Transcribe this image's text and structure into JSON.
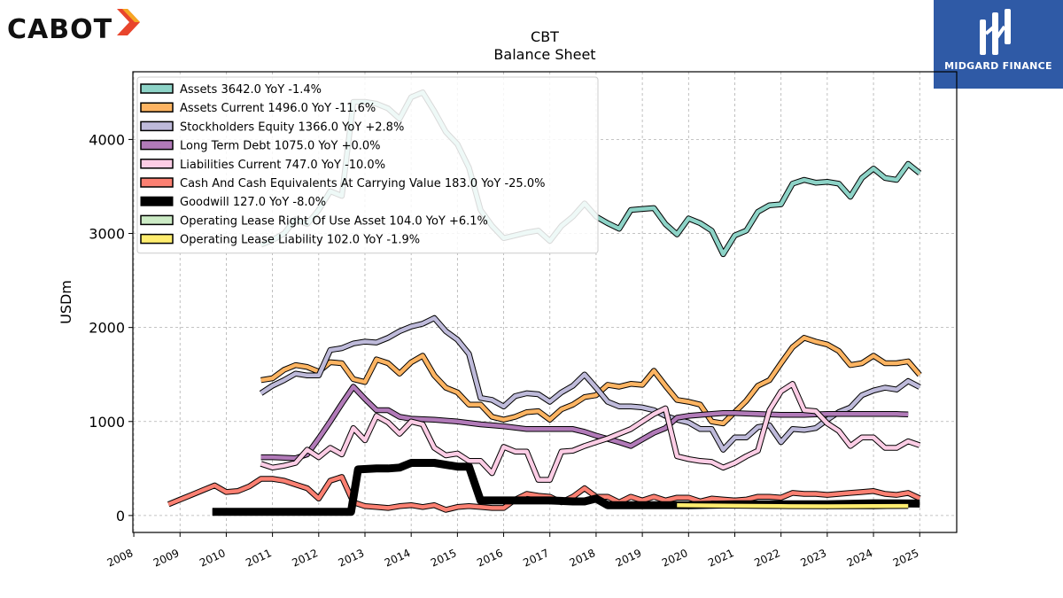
{
  "brand": {
    "left_logo": "CABOT",
    "right_logo": "MIDGARD FINANCE"
  },
  "chart_data": {
    "type": "line",
    "title": "CBT",
    "subtitle": "Balance  Sheet",
    "ylabel": "USDm",
    "xlabel": "",
    "ylim": [
      -180,
      4720
    ],
    "xlim": [
      2007.98,
      2025.8
    ],
    "yticks": [
      0,
      1000,
      2000,
      3000,
      4000
    ],
    "xticks": [
      2008,
      2009,
      2010,
      2011,
      2012,
      2013,
      2014,
      2015,
      2016,
      2017,
      2018,
      2019,
      2020,
      2021,
      2022,
      2023,
      2024,
      2025
    ],
    "grid": true,
    "legend_position": "top-left",
    "series": [
      {
        "name": "Assets  3642.0 YoY -1.4%",
        "color": "#8dd3c7",
        "x": [
          2010.75,
          2011.0,
          2011.25,
          2011.5,
          2011.75,
          2012.0,
          2012.25,
          2012.5,
          2012.75,
          2013.0,
          2013.25,
          2013.5,
          2013.75,
          2014.0,
          2014.25,
          2014.5,
          2014.75,
          2015.0,
          2015.25,
          2015.5,
          2015.75,
          2016.0,
          2016.25,
          2016.5,
          2016.75,
          2017.0,
          2017.25,
          2017.5,
          2017.75,
          2018.0,
          2018.25,
          2018.5,
          2018.75,
          2019.0,
          2019.25,
          2019.5,
          2019.75,
          2020.0,
          2020.25,
          2020.5,
          2020.75,
          2021.0,
          2021.25,
          2021.5,
          2021.75,
          2022.0,
          2022.25,
          2022.5,
          2022.75,
          2023.0,
          2023.25,
          2023.5,
          2023.75,
          2024.0,
          2024.25,
          2024.5,
          2024.75,
          2025.0
        ],
        "y": [
          2880,
          2930,
          3000,
          3150,
          3100,
          3250,
          3450,
          3400,
          4400,
          4400,
          4380,
          4330,
          4220,
          4450,
          4500,
          4300,
          4080,
          3950,
          3700,
          3250,
          3080,
          2950,
          2980,
          3010,
          3030,
          2920,
          3080,
          3180,
          3320,
          3180,
          3110,
          3050,
          3250,
          3260,
          3270,
          3100,
          2990,
          3160,
          3110,
          3030,
          2780,
          2980,
          3030,
          3230,
          3300,
          3310,
          3530,
          3570,
          3540,
          3550,
          3530,
          3390,
          3590,
          3690,
          3590,
          3570,
          3740,
          3642
        ]
      },
      {
        "name": "Assets Current  1496.0 YoY -11.6%",
        "color": "#fdb462",
        "x": [
          2010.75,
          2011.0,
          2011.25,
          2011.5,
          2011.75,
          2012.0,
          2012.25,
          2012.5,
          2012.75,
          2013.0,
          2013.25,
          2013.5,
          2013.75,
          2014.0,
          2014.25,
          2014.5,
          2014.75,
          2015.0,
          2015.25,
          2015.5,
          2015.75,
          2016.0,
          2016.25,
          2016.5,
          2016.75,
          2017.0,
          2017.25,
          2017.5,
          2017.75,
          2018.0,
          2018.25,
          2018.5,
          2018.75,
          2019.0,
          2019.25,
          2019.5,
          2019.75,
          2020.0,
          2020.25,
          2020.5,
          2020.75,
          2021.0,
          2021.25,
          2021.5,
          2021.75,
          2022.0,
          2022.25,
          2022.5,
          2022.75,
          2023.0,
          2023.25,
          2023.5,
          2023.75,
          2024.0,
          2024.25,
          2024.5,
          2024.75,
          2025.0
        ],
        "y": [
          1440,
          1460,
          1550,
          1600,
          1580,
          1530,
          1630,
          1620,
          1450,
          1420,
          1660,
          1620,
          1510,
          1630,
          1700,
          1490,
          1360,
          1310,
          1180,
          1180,
          1050,
          1020,
          1050,
          1100,
          1110,
          1020,
          1130,
          1180,
          1260,
          1280,
          1390,
          1370,
          1400,
          1390,
          1540,
          1380,
          1230,
          1210,
          1180,
          1000,
          980,
          1100,
          1220,
          1380,
          1440,
          1620,
          1790,
          1890,
          1850,
          1820,
          1750,
          1600,
          1620,
          1700,
          1620,
          1620,
          1640,
          1496
        ]
      },
      {
        "name": "Stockholders Equity  1366.0 YoY +2.8%",
        "color": "#bebada",
        "x": [
          2010.75,
          2011.0,
          2011.25,
          2011.5,
          2011.75,
          2012.0,
          2012.25,
          2012.5,
          2012.75,
          2013.0,
          2013.25,
          2013.5,
          2013.75,
          2014.0,
          2014.25,
          2014.5,
          2014.75,
          2015.0,
          2015.25,
          2015.5,
          2015.75,
          2016.0,
          2016.25,
          2016.5,
          2016.75,
          2017.0,
          2017.25,
          2017.5,
          2017.75,
          2018.0,
          2018.25,
          2018.5,
          2018.75,
          2019.0,
          2019.25,
          2019.5,
          2019.75,
          2020.0,
          2020.25,
          2020.5,
          2020.75,
          2021.0,
          2021.25,
          2021.5,
          2021.75,
          2022.0,
          2022.25,
          2022.5,
          2022.75,
          2023.0,
          2023.25,
          2023.5,
          2023.75,
          2024.0,
          2024.25,
          2024.5,
          2024.75,
          2025.0
        ],
        "y": [
          1300,
          1380,
          1440,
          1510,
          1490,
          1490,
          1760,
          1780,
          1830,
          1850,
          1840,
          1890,
          1960,
          2010,
          2040,
          2100,
          1960,
          1870,
          1720,
          1250,
          1230,
          1160,
          1270,
          1300,
          1290,
          1210,
          1310,
          1380,
          1500,
          1360,
          1210,
          1160,
          1160,
          1150,
          1120,
          1060,
          1020,
          990,
          920,
          920,
          700,
          830,
          830,
          940,
          960,
          780,
          920,
          910,
          930,
          1020,
          1100,
          1150,
          1280,
          1330,
          1360,
          1340,
          1430,
          1366
        ]
      },
      {
        "name": "Long Term Debt  1075.0 YoY +0.0%",
        "color": "#b17ab8",
        "x": [
          2010.75,
          2011.0,
          2011.5,
          2011.75,
          2012.0,
          2012.25,
          2012.5,
          2012.75,
          2013.0,
          2013.25,
          2013.5,
          2013.75,
          2014.0,
          2014.5,
          2015.0,
          2015.5,
          2016.0,
          2016.5,
          2017.0,
          2017.5,
          2017.75,
          2018.0,
          2018.5,
          2018.75,
          2019.0,
          2019.25,
          2019.5,
          2019.75,
          2020.0,
          2020.5,
          2020.75,
          2021.0,
          2021.5,
          2022.0,
          2022.5,
          2023.0,
          2023.5,
          2024.0,
          2024.5,
          2024.75
        ],
        "y": [
          620,
          620,
          610,
          650,
          820,
          1000,
          1190,
          1370,
          1240,
          1120,
          1120,
          1050,
          1030,
          1020,
          1000,
          970,
          950,
          920,
          920,
          920,
          890,
          850,
          780,
          740,
          810,
          880,
          930,
          1040,
          1060,
          1080,
          1090,
          1090,
          1080,
          1070,
          1070,
          1080,
          1080,
          1080,
          1080,
          1075
        ]
      },
      {
        "name": "Liabilities Current  747.0 YoY -10.0%",
        "color": "#fccde5",
        "x": [
          2010.75,
          2011.0,
          2011.25,
          2011.5,
          2011.75,
          2012.0,
          2012.25,
          2012.5,
          2012.75,
          2013.0,
          2013.25,
          2013.5,
          2013.75,
          2014.0,
          2014.25,
          2014.5,
          2014.75,
          2015.0,
          2015.25,
          2015.5,
          2015.75,
          2016.0,
          2016.25,
          2016.5,
          2016.75,
          2017.0,
          2017.25,
          2017.5,
          2017.75,
          2018.0,
          2018.25,
          2018.5,
          2018.75,
          2019.0,
          2019.25,
          2019.5,
          2019.75,
          2020.0,
          2020.25,
          2020.5,
          2020.75,
          2021.0,
          2021.25,
          2021.5,
          2021.75,
          2022.0,
          2022.25,
          2022.5,
          2022.75,
          2023.0,
          2023.25,
          2023.5,
          2023.75,
          2024.0,
          2024.25,
          2024.5,
          2024.75,
          2025.0
        ],
        "y": [
          550,
          510,
          530,
          560,
          700,
          620,
          720,
          650,
          930,
          800,
          1060,
          990,
          870,
          1000,
          970,
          720,
          640,
          660,
          580,
          580,
          450,
          730,
          680,
          680,
          380,
          380,
          680,
          690,
          740,
          780,
          820,
          870,
          920,
          1000,
          1080,
          1140,
          630,
          600,
          580,
          570,
          510,
          560,
          630,
          690,
          1120,
          1320,
          1400,
          1120,
          1110,
          980,
          900,
          740,
          830,
          830,
          720,
          720,
          790,
          747
        ]
      },
      {
        "name": "Cash And Cash Equivalents At Carrying Value  183.0 YoY -25.0%",
        "color": "#fb8072",
        "x": [
          2008.75,
          2009.0,
          2009.25,
          2009.5,
          2009.75,
          2010.0,
          2010.25,
          2010.5,
          2010.75,
          2011.0,
          2011.25,
          2011.5,
          2011.75,
          2012.0,
          2012.25,
          2012.5,
          2012.75,
          2013.0,
          2013.25,
          2013.5,
          2013.75,
          2014.0,
          2014.25,
          2014.5,
          2014.75,
          2015.0,
          2015.25,
          2015.5,
          2015.75,
          2016.0,
          2016.25,
          2016.5,
          2016.75,
          2017.0,
          2017.25,
          2017.5,
          2017.75,
          2018.0,
          2018.25,
          2018.5,
          2018.75,
          2019.0,
          2019.25,
          2019.5,
          2019.75,
          2020.0,
          2020.25,
          2020.5,
          2020.75,
          2021.0,
          2021.25,
          2021.5,
          2021.75,
          2022.0,
          2022.25,
          2022.5,
          2022.75,
          2023.0,
          2023.25,
          2023.5,
          2023.75,
          2024.0,
          2024.25,
          2024.5,
          2024.75,
          2025.0
        ],
        "y": [
          120,
          170,
          220,
          270,
          320,
          250,
          260,
          310,
          390,
          390,
          370,
          330,
          290,
          180,
          370,
          410,
          140,
          100,
          90,
          80,
          100,
          110,
          90,
          110,
          60,
          90,
          100,
          90,
          80,
          80,
          170,
          230,
          210,
          200,
          140,
          200,
          290,
          200,
          200,
          140,
          200,
          160,
          200,
          160,
          190,
          190,
          150,
          180,
          170,
          160,
          170,
          200,
          200,
          190,
          240,
          230,
          230,
          220,
          230,
          240,
          250,
          260,
          230,
          220,
          240,
          183
        ]
      },
      {
        "name": "Goodwill  127.0 YoY -8.0%",
        "color": "#000000",
        "x": [
          2009.7,
          2010.0,
          2011.0,
          2012.0,
          2012.5,
          2012.7,
          2012.85,
          2013.25,
          2013.5,
          2013.75,
          2014.0,
          2014.5,
          2015.0,
          2015.25,
          2015.5,
          2016.0,
          2016.5,
          2017.0,
          2017.5,
          2017.75,
          2018.0,
          2018.25,
          2019.0,
          2020.0,
          2021.0,
          2022.0,
          2023.0,
          2024.0,
          2025.0
        ],
        "y": [
          40,
          40,
          40,
          40,
          40,
          40,
          490,
          500,
          500,
          510,
          560,
          560,
          520,
          520,
          160,
          160,
          160,
          160,
          150,
          150,
          180,
          110,
          110,
          110,
          120,
          120,
          120,
          130,
          127
        ]
      },
      {
        "name": "Operating Lease Right Of Use Asset  104.0 YoY +6.1%",
        "color": "#ccebc5",
        "x": [
          2019.75,
          2020.0,
          2021.0,
          2022.0,
          2023.0,
          2024.0,
          2024.75
        ],
        "y": [
          110,
          110,
          106,
          102,
          100,
          98,
          104
        ]
      },
      {
        "name": "Operating Lease Liability  102.0 YoY -1.9%",
        "color": "#ffed6f",
        "x": [
          2019.75,
          2020.0,
          2021.0,
          2022.0,
          2023.0,
          2024.0,
          2024.75
        ],
        "y": [
          110,
          108,
          104,
          100,
          98,
          100,
          102
        ]
      }
    ]
  }
}
